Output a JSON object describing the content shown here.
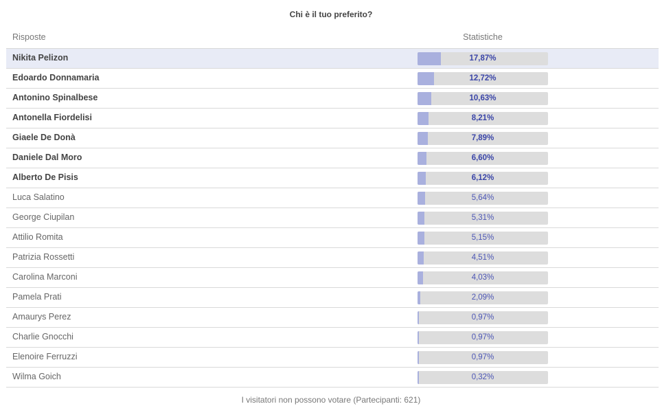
{
  "poll": {
    "title": "Chi è il tuo preferito?",
    "col_answers": "Risposte",
    "col_stats": "Statistiche",
    "footer": "I visitatori non possono votare (Partecipanti: 621)",
    "colors": {
      "bar_fill": "#a9b0de",
      "bar_track": "#dddddd",
      "highlight_row": "#e8ebf6",
      "pct_text": "#4c56b5"
    },
    "rows": [
      {
        "name": "Nikita Pelizon",
        "pct": "17,87%",
        "value": 17.87,
        "bold": true,
        "highlight": true
      },
      {
        "name": "Edoardo Donnamaria",
        "pct": "12,72%",
        "value": 12.72,
        "bold": true,
        "highlight": false
      },
      {
        "name": "Antonino Spinalbese",
        "pct": "10,63%",
        "value": 10.63,
        "bold": true,
        "highlight": false
      },
      {
        "name": "Antonella Fiordelisi",
        "pct": "8,21%",
        "value": 8.21,
        "bold": true,
        "highlight": false
      },
      {
        "name": "Giaele De Donà",
        "pct": "7,89%",
        "value": 7.89,
        "bold": true,
        "highlight": false
      },
      {
        "name": "Daniele Dal Moro",
        "pct": "6,60%",
        "value": 6.6,
        "bold": true,
        "highlight": false
      },
      {
        "name": "Alberto De Pisis",
        "pct": "6,12%",
        "value": 6.12,
        "bold": true,
        "highlight": false
      },
      {
        "name": "Luca Salatino",
        "pct": "5,64%",
        "value": 5.64,
        "bold": false,
        "highlight": false
      },
      {
        "name": "George Ciupilan",
        "pct": "5,31%",
        "value": 5.31,
        "bold": false,
        "highlight": false
      },
      {
        "name": "Attilio Romita",
        "pct": "5,15%",
        "value": 5.15,
        "bold": false,
        "highlight": false
      },
      {
        "name": "Patrizia Rossetti",
        "pct": "4,51%",
        "value": 4.51,
        "bold": false,
        "highlight": false
      },
      {
        "name": "Carolina Marconi",
        "pct": "4,03%",
        "value": 4.03,
        "bold": false,
        "highlight": false
      },
      {
        "name": "Pamela Prati",
        "pct": "2,09%",
        "value": 2.09,
        "bold": false,
        "highlight": false
      },
      {
        "name": "Amaurys Perez",
        "pct": "0,97%",
        "value": 0.97,
        "bold": false,
        "highlight": false
      },
      {
        "name": "Charlie Gnocchi",
        "pct": "0,97%",
        "value": 0.97,
        "bold": false,
        "highlight": false
      },
      {
        "name": "Elenoire Ferruzzi",
        "pct": "0,97%",
        "value": 0.97,
        "bold": false,
        "highlight": false
      },
      {
        "name": "Wilma Goich",
        "pct": "0,32%",
        "value": 0.32,
        "bold": false,
        "highlight": false
      }
    ]
  }
}
